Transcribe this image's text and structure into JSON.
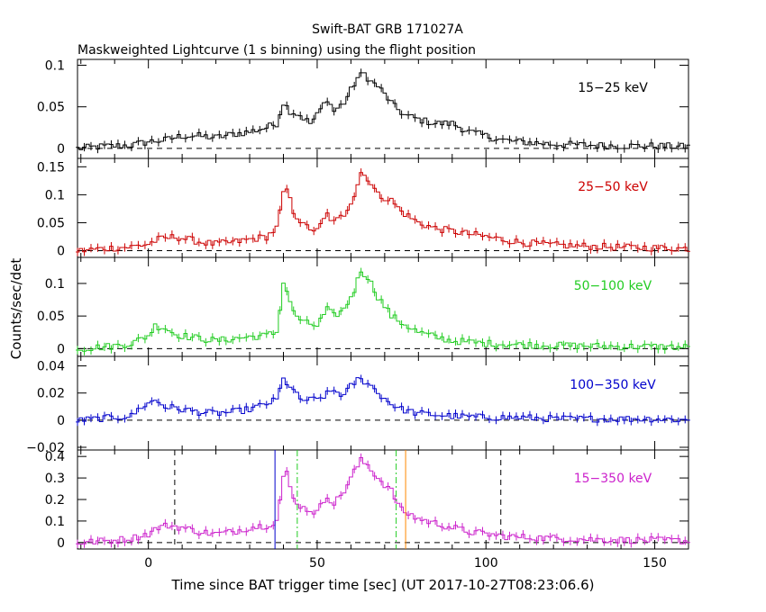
{
  "chart_data": {
    "type": "line",
    "title": "Swift-BAT GRB 171027A",
    "subtitle": "Maskweighted Lightcurve (1 s binning) using the flight position",
    "xlabel": "Time since BAT trigger time [sec] (UT 2017-10-27T08:23:06.6)",
    "ylabel": "Counts/sec/det",
    "xlim": [
      -21,
      160
    ],
    "x_ticks": [
      "0",
      "50",
      "100",
      "150"
    ],
    "x_tick_values": [
      0,
      50,
      100,
      150
    ],
    "grid": false,
    "panels": [
      {
        "band": "15−25 keV",
        "color": "#000000",
        "ylim": [
          -0.012,
          0.107
        ],
        "y_ticks": [
          "0",
          "0.05",
          "0.1"
        ],
        "y_tick_values": [
          0,
          0.05,
          0.1
        ],
        "series": [
          {
            "x": [
              -20,
              -15,
              -10,
              -5,
              0,
              5,
              10,
              15,
              20,
              25,
              30,
              35,
              38,
              40,
              42,
              45,
              48,
              50,
              53,
              55,
              58,
              60,
              62,
              64,
              66,
              68,
              70,
              73,
              76,
              80,
              85,
              90,
              95,
              100,
              105,
              110,
              120,
              130,
              140,
              150,
              160
            ],
            "y": [
              0.0,
              0.002,
              0.003,
              0.004,
              0.008,
              0.01,
              0.015,
              0.015,
              0.013,
              0.017,
              0.02,
              0.025,
              0.03,
              0.055,
              0.045,
              0.04,
              0.03,
              0.04,
              0.06,
              0.045,
              0.055,
              0.07,
              0.085,
              0.09,
              0.08,
              0.075,
              0.065,
              0.05,
              0.04,
              0.035,
              0.03,
              0.03,
              0.02,
              0.015,
              0.01,
              0.008,
              0.005,
              0.004,
              0.003,
              0.003,
              0.002
            ]
          }
        ]
      },
      {
        "band": "25−50 keV",
        "color": "#cc0000",
        "ylim": [
          -0.012,
          0.165
        ],
        "y_ticks": [
          "0",
          "0.05",
          "0.1",
          "0.15"
        ],
        "y_tick_values": [
          0,
          0.05,
          0.1,
          0.15
        ],
        "series": [
          {
            "x": [
              -20,
              -15,
              -10,
              -5,
              0,
              3,
              8,
              12,
              16,
              20,
              25,
              30,
              35,
              38,
              40,
              41,
              43,
              46,
              50,
              53,
              55,
              58,
              61,
              63,
              65,
              68,
              72,
              75,
              80,
              85,
              90,
              95,
              100,
              105,
              110,
              120,
              130,
              140,
              150,
              160
            ],
            "y": [
              0.0,
              0.003,
              0.005,
              0.007,
              0.012,
              0.02,
              0.025,
              0.02,
              0.015,
              0.012,
              0.015,
              0.02,
              0.025,
              0.04,
              0.1,
              0.11,
              0.07,
              0.045,
              0.035,
              0.065,
              0.05,
              0.065,
              0.1,
              0.14,
              0.13,
              0.1,
              0.09,
              0.07,
              0.05,
              0.04,
              0.035,
              0.03,
              0.025,
              0.02,
              0.015,
              0.01,
              0.008,
              0.006,
              0.005,
              0.004
            ]
          }
        ]
      },
      {
        "band": "50−100 keV",
        "color": "#22cc22",
        "ylim": [
          -0.012,
          0.14
        ],
        "y_ticks": [
          "0",
          "0.05",
          "0.1"
        ],
        "y_tick_values": [
          0,
          0.05,
          0.1
        ],
        "series": [
          {
            "x": [
              -20,
              -15,
              -10,
              -5,
              0,
              2,
              5,
              8,
              12,
              16,
              20,
              25,
              30,
              35,
              38,
              40,
              41,
              43,
              46,
              50,
              53,
              55,
              58,
              61,
              63,
              65,
              68,
              72,
              75,
              80,
              85,
              90,
              95,
              100,
              110,
              120,
              130,
              140,
              150,
              160
            ],
            "y": [
              0.0,
              0.002,
              0.004,
              0.008,
              0.02,
              0.035,
              0.032,
              0.022,
              0.018,
              0.015,
              0.012,
              0.015,
              0.018,
              0.02,
              0.025,
              0.1,
              0.09,
              0.055,
              0.04,
              0.035,
              0.06,
              0.05,
              0.06,
              0.09,
              0.12,
              0.11,
              0.08,
              0.05,
              0.04,
              0.025,
              0.018,
              0.012,
              0.01,
              0.008,
              0.006,
              0.005,
              0.004,
              0.003,
              0.003,
              0.002
            ]
          }
        ]
      },
      {
        "band": "100−350 keV",
        "color": "#0000cc",
        "ylim": [
          -0.022,
          0.047
        ],
        "y_ticks": [
          "−0.02",
          "0",
          "0.02",
          "0.04"
        ],
        "y_tick_values": [
          -0.02,
          0,
          0.02,
          0.04
        ],
        "series": [
          {
            "x": [
              -20,
              -15,
              -10,
              -5,
              -2,
              0,
              2,
              5,
              10,
              15,
              20,
              25,
              30,
              35,
              38,
              40,
              42,
              45,
              50,
              55,
              58,
              60,
              62,
              65,
              68,
              72,
              75,
              80,
              90,
              100,
              110,
              120,
              130,
              140,
              150,
              160
            ],
            "y": [
              0.0,
              0.001,
              0.002,
              0.003,
              0.01,
              0.012,
              0.015,
              0.01,
              0.008,
              0.006,
              0.005,
              0.006,
              0.008,
              0.012,
              0.015,
              0.03,
              0.025,
              0.015,
              0.015,
              0.022,
              0.018,
              0.025,
              0.03,
              0.028,
              0.02,
              0.012,
              0.008,
              0.005,
              0.003,
              0.002,
              0.002,
              0.001,
              0.001,
              0.001,
              0.001,
              0.0
            ]
          }
        ]
      },
      {
        "band": "15−350 keV",
        "color": "#cc22cc",
        "ylim": [
          -0.03,
          0.43
        ],
        "y_ticks": [
          "0",
          "0.1",
          "0.2",
          "0.3",
          "0.4"
        ],
        "y_tick_values": [
          0,
          0.1,
          0.2,
          0.3,
          0.4
        ],
        "markers": [
          {
            "x": 7.8,
            "style": "dashed",
            "color": "#000000"
          },
          {
            "x": 37.5,
            "style": "solid",
            "color": "#0000cc"
          },
          {
            "x": 44.1,
            "style": "dashdot",
            "color": "#22cc22"
          },
          {
            "x": 73.4,
            "style": "dashdot",
            "color": "#22cc22"
          },
          {
            "x": 76.2,
            "style": "solid",
            "color": "#ff8800"
          },
          {
            "x": 104.4,
            "style": "dashed",
            "color": "#000000"
          }
        ],
        "series": [
          {
            "x": [
              -20,
              -15,
              -10,
              -5,
              0,
              3,
              6,
              10,
              15,
              20,
              25,
              30,
              35,
              38,
              40,
              41,
              43,
              46,
              50,
              53,
              55,
              58,
              61,
              63,
              65,
              68,
              72,
              75,
              80,
              85,
              90,
              95,
              100,
              105,
              110,
              120,
              130,
              140,
              150,
              160
            ],
            "y": [
              0.0,
              0.005,
              0.01,
              0.02,
              0.04,
              0.07,
              0.08,
              0.07,
              0.05,
              0.04,
              0.05,
              0.07,
              0.08,
              0.1,
              0.3,
              0.32,
              0.2,
              0.16,
              0.14,
              0.22,
              0.18,
              0.24,
              0.33,
              0.38,
              0.36,
              0.3,
              0.24,
              0.15,
              0.11,
              0.09,
              0.07,
              0.05,
              0.04,
              0.03,
              0.025,
              0.02,
              0.015,
              0.012,
              0.01,
              0.008
            ]
          }
        ]
      }
    ]
  }
}
